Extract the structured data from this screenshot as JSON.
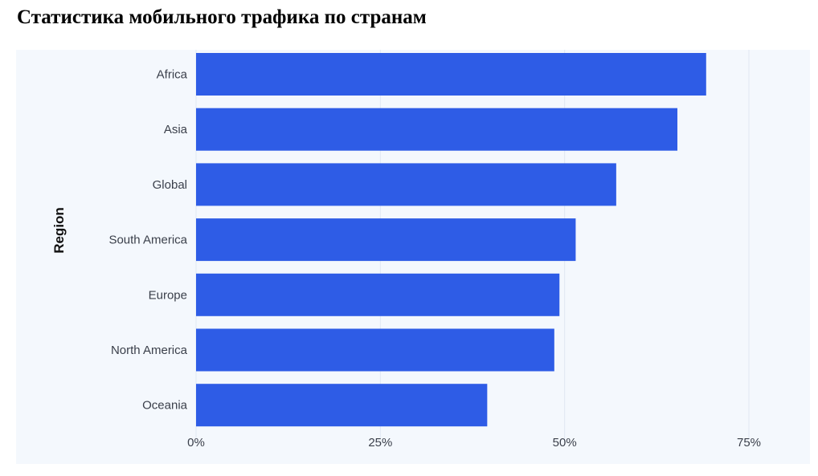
{
  "page": {
    "title": "Статистика мобильного трафика по странам"
  },
  "chart_data": {
    "type": "bar",
    "orientation": "horizontal",
    "categories": [
      "Africa",
      "Asia",
      "Global",
      "South America",
      "Europe",
      "North America",
      "Oceania"
    ],
    "values": [
      69.2,
      65.3,
      57.0,
      51.5,
      49.3,
      48.6,
      39.5
    ],
    "ylabel": "Region",
    "xlim": [
      0,
      75
    ],
    "xticks": [
      0,
      25,
      50,
      75
    ],
    "xtick_labels": [
      "0%",
      "25%",
      "50%",
      "75%"
    ],
    "grid": true,
    "legend": "none",
    "bar_color": "#2e5ce6",
    "background_color": "#f4f8fd"
  }
}
